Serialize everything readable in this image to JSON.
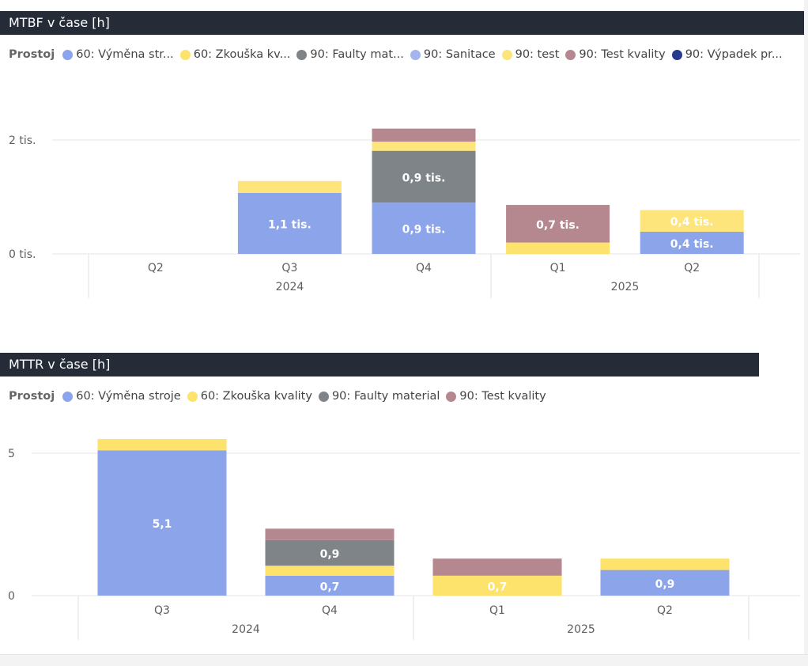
{
  "charts": [
    {
      "title": "MTBF v čase [h]",
      "legend_title": "Prostoj",
      "legend": [
        {
          "label": "60: Výměna str...",
          "color": "#8ba4ea"
        },
        {
          "label": "60: Zkouška kv...",
          "color": "#fde26b"
        },
        {
          "label": "90: Faulty mat...",
          "color": "#7f8488"
        },
        {
          "label": "90: Sanitace",
          "color": "#a4b5ee"
        },
        {
          "label": "90: test",
          "color": "#fde47b"
        },
        {
          "label": "90: Test kvality",
          "color": "#b5878f"
        },
        {
          "label": "90: Výpadek pr...",
          "color": "#273a8e"
        }
      ],
      "yticks": [
        {
          "value": 0,
          "label": "0 tis."
        },
        {
          "value": 2000,
          "label": "2 tis."
        }
      ]
    },
    {
      "title": "MTTR v čase [h]",
      "legend_title": "Prostoj",
      "legend": [
        {
          "label": "60: Výměna stroje",
          "color": "#8ba4ea"
        },
        {
          "label": "60: Zkouška kvality",
          "color": "#fde26b"
        },
        {
          "label": "90: Faulty material",
          "color": "#7f8488"
        },
        {
          "label": "90: Test kvality",
          "color": "#b5878f"
        }
      ],
      "yticks": [
        {
          "value": 0,
          "label": "0"
        },
        {
          "value": 5,
          "label": "5"
        }
      ]
    }
  ],
  "chart_data": [
    {
      "type": "bar",
      "stacked": true,
      "title": "MTBF v čase [h]",
      "legend_title": "Prostoj",
      "categories": [
        "Q2",
        "Q3",
        "Q4",
        "Q1",
        "Q2"
      ],
      "groups": [
        {
          "label": "2024",
          "categories": [
            "Q2",
            "Q3",
            "Q4"
          ]
        },
        {
          "label": "2025",
          "categories": [
            "Q1",
            "Q2"
          ]
        }
      ],
      "ylim": [
        0,
        2200
      ],
      "series": [
        {
          "name": "60: Výměna str...",
          "color": "#8ba4ea",
          "values": [
            0,
            1070,
            900,
            0,
            390
          ],
          "labels": [
            "",
            "1,1 tis.",
            "0,9 tis.",
            "",
            "0,4 tis."
          ]
        },
        {
          "name": "60: Zkouška kv...",
          "color": "#fde26b",
          "values": [
            0,
            0,
            0,
            200,
            0
          ],
          "labels": [
            "",
            "",
            "",
            "",
            ""
          ]
        },
        {
          "name": "90: Faulty mat...",
          "color": "#7f8488",
          "values": [
            0,
            0,
            910,
            0,
            0
          ],
          "labels": [
            "",
            "",
            "0,9 tis.",
            "",
            ""
          ]
        },
        {
          "name": "90: Sanitace",
          "color": "#a4b5ee",
          "values": [
            0,
            0,
            0,
            0,
            0
          ],
          "labels": [
            "",
            "",
            "",
            "",
            ""
          ]
        },
        {
          "name": "90: test",
          "color": "#fde47b",
          "values": [
            0,
            210,
            160,
            0,
            380
          ],
          "labels": [
            "",
            "",
            "",
            "",
            "0,4 tis."
          ]
        },
        {
          "name": "90: Test kvality",
          "color": "#b5878f",
          "values": [
            0,
            0,
            230,
            660,
            0
          ],
          "labels": [
            "",
            "",
            "",
            "0,7 tis.",
            ""
          ]
        },
        {
          "name": "90: Výpadek pr...",
          "color": "#273a8e",
          "values": [
            0,
            0,
            0,
            0,
            0
          ],
          "labels": [
            "",
            "",
            "",
            "",
            ""
          ]
        }
      ]
    },
    {
      "type": "bar",
      "stacked": true,
      "title": "MTTR v čase [h]",
      "legend_title": "Prostoj",
      "categories": [
        "Q3",
        "Q4",
        "Q1",
        "Q2"
      ],
      "groups": [
        {
          "label": "2024",
          "categories": [
            "Q3",
            "Q4"
          ]
        },
        {
          "label": "2025",
          "categories": [
            "Q1",
            "Q2"
          ]
        }
      ],
      "ylim": [
        0,
        6
      ],
      "series": [
        {
          "name": "60: Výměna stroje",
          "color": "#8ba4ea",
          "values": [
            5.1,
            0.7,
            0,
            0.9
          ],
          "labels": [
            "5,1",
            "0,7",
            "",
            "0,9"
          ]
        },
        {
          "name": "60: Zkouška kvality",
          "color": "#fde26b",
          "values": [
            0.4,
            0.35,
            0.7,
            0.4
          ],
          "labels": [
            "",
            "",
            "0,7",
            ""
          ]
        },
        {
          "name": "90: Faulty material",
          "color": "#7f8488",
          "values": [
            0,
            0.9,
            0,
            0
          ],
          "labels": [
            "",
            "0,9",
            "",
            ""
          ]
        },
        {
          "name": "90: Test kvality",
          "color": "#b5878f",
          "values": [
            0,
            0.4,
            0.6,
            0
          ],
          "labels": [
            "",
            "",
            "",
            ""
          ]
        }
      ]
    }
  ]
}
